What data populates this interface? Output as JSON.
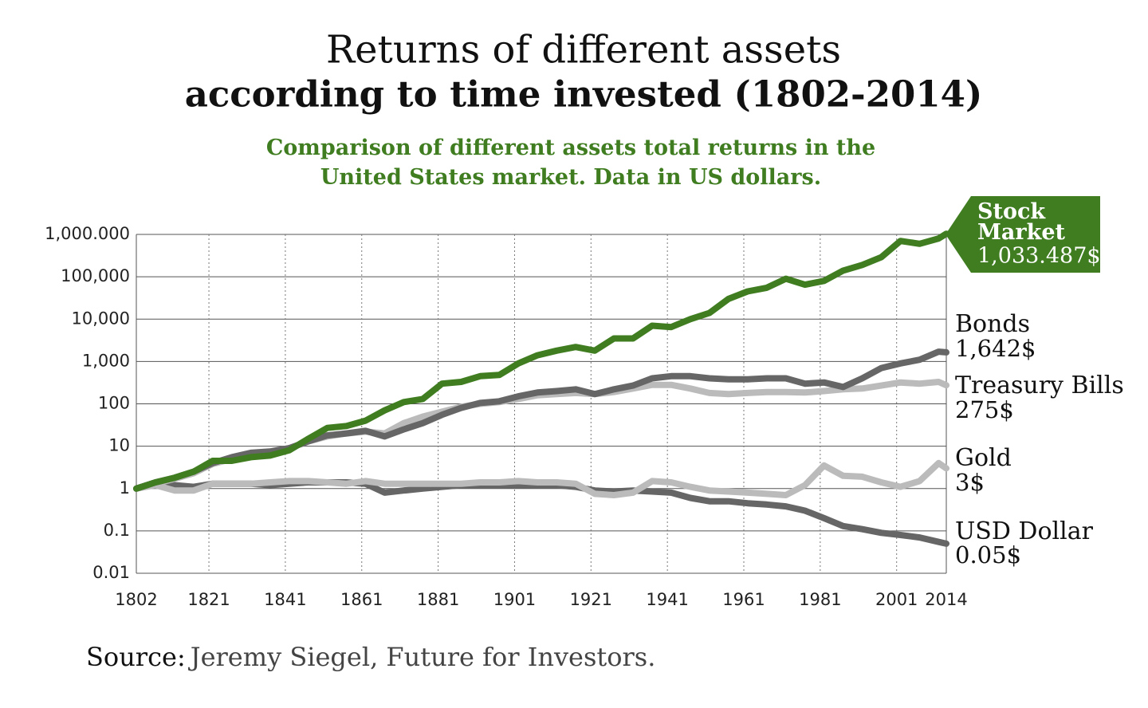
{
  "chart_data": {
    "type": "line",
    "title": "Returns of different assets",
    "subtitle_bold": "according to time invested (1802-2014)",
    "description": "Comparison of different assets total returns in the United States market. Data in US dollars.",
    "source_label": "Source:",
    "source": "Jeremy Siegel, Future for Investors.",
    "log_y": true,
    "grid": true,
    "x": [
      1802,
      1807,
      1812,
      1817,
      1822,
      1827,
      1832,
      1837,
      1842,
      1847,
      1852,
      1857,
      1862,
      1867,
      1872,
      1877,
      1882,
      1887,
      1892,
      1897,
      1902,
      1907,
      1912,
      1917,
      1922,
      1927,
      1932,
      1937,
      1942,
      1947,
      1952,
      1957,
      1962,
      1967,
      1972,
      1977,
      1982,
      1987,
      1992,
      1997,
      2002,
      2007,
      2012,
      2014
    ],
    "xlim": [
      1802,
      2014
    ],
    "xticks": [
      1802,
      1821,
      1841,
      1861,
      1881,
      1901,
      1921,
      1941,
      1961,
      1981,
      2001,
      2014
    ],
    "ylim": [
      0.01,
      1000000
    ],
    "yticks": [
      0.01,
      0.1,
      1,
      10,
      100,
      {
        "value": 1000,
        "label": "1,000"
      },
      {
        "value": 10000,
        "label": "10,000"
      },
      {
        "value": 100000,
        "label": "100,000"
      },
      {
        "value": 1000000,
        "label": "1,000.000"
      }
    ],
    "series": [
      {
        "name": "Stock Market",
        "color": "#3f7d20",
        "values": [
          1,
          1.4,
          1.8,
          2.5,
          4.5,
          4.5,
          5.5,
          6,
          8,
          15,
          27,
          30,
          40,
          70,
          110,
          130,
          300,
          330,
          450,
          480,
          900,
          1400,
          1800,
          2200,
          1800,
          3500,
          3500,
          7000,
          6500,
          10000,
          14000,
          30000,
          45000,
          55000,
          90000,
          65000,
          80000,
          140000,
          190000,
          290000,
          700000,
          600000,
          800000,
          1033487
        ],
        "value_labels": {
          "43": "1,033.487$"
        }
      },
      {
        "name": "Bonds",
        "color": "#666666",
        "values": [
          1,
          1.4,
          1.8,
          2.5,
          4,
          5.5,
          7,
          7.5,
          9,
          13,
          18,
          20,
          23,
          17,
          25,
          35,
          55,
          80,
          105,
          115,
          150,
          185,
          200,
          220,
          170,
          220,
          270,
          400,
          450,
          450,
          400,
          380,
          380,
          400,
          400,
          300,
          320,
          250,
          400,
          700,
          900,
          1100,
          1700,
          1642
        ],
        "value_labels": {
          "43": "1,642$"
        }
      },
      {
        "name": "Treasury Bills",
        "color": "#bbbbbb",
        "values": [
          1,
          1.3,
          1.7,
          2.3,
          3.8,
          5,
          6,
          7,
          9,
          13,
          17,
          20,
          22,
          20,
          35,
          50,
          65,
          85,
          100,
          110,
          130,
          160,
          170,
          180,
          170,
          190,
          230,
          280,
          280,
          230,
          180,
          170,
          180,
          190,
          190,
          185,
          200,
          220,
          230,
          270,
          320,
          300,
          330,
          275
        ],
        "value_labels": {
          "43": "275$"
        }
      },
      {
        "name": "Gold",
        "color": "#bbbbbb",
        "values": [
          1,
          1.2,
          0.9,
          0.9,
          1.3,
          1.3,
          1.3,
          1.4,
          1.5,
          1.5,
          1.4,
          1.3,
          1.5,
          1.3,
          1.3,
          1.3,
          1.3,
          1.3,
          1.4,
          1.4,
          1.5,
          1.4,
          1.4,
          1.3,
          0.75,
          0.7,
          0.8,
          1.5,
          1.4,
          1.1,
          0.9,
          0.85,
          0.8,
          0.75,
          0.7,
          1.2,
          3.5,
          2,
          1.9,
          1.4,
          1.1,
          1.5,
          4,
          3
        ],
        "value_labels": {
          "43": "3$"
        }
      },
      {
        "name": "USD Dollar",
        "color": "#666666",
        "values": [
          1,
          1.4,
          1.2,
          1.1,
          1.3,
          1.3,
          1.3,
          1.2,
          1.3,
          1.4,
          1.4,
          1.4,
          1.3,
          0.8,
          0.9,
          1,
          1.1,
          1.2,
          1.2,
          1.2,
          1.2,
          1.2,
          1.2,
          1.1,
          0.9,
          0.85,
          0.9,
          0.85,
          0.8,
          0.6,
          0.5,
          0.5,
          0.45,
          0.42,
          0.38,
          0.3,
          0.2,
          0.13,
          0.11,
          0.09,
          0.08,
          0.07,
          0.055,
          0.05
        ],
        "value_labels": {
          "43": "0.05$"
        }
      }
    ]
  }
}
